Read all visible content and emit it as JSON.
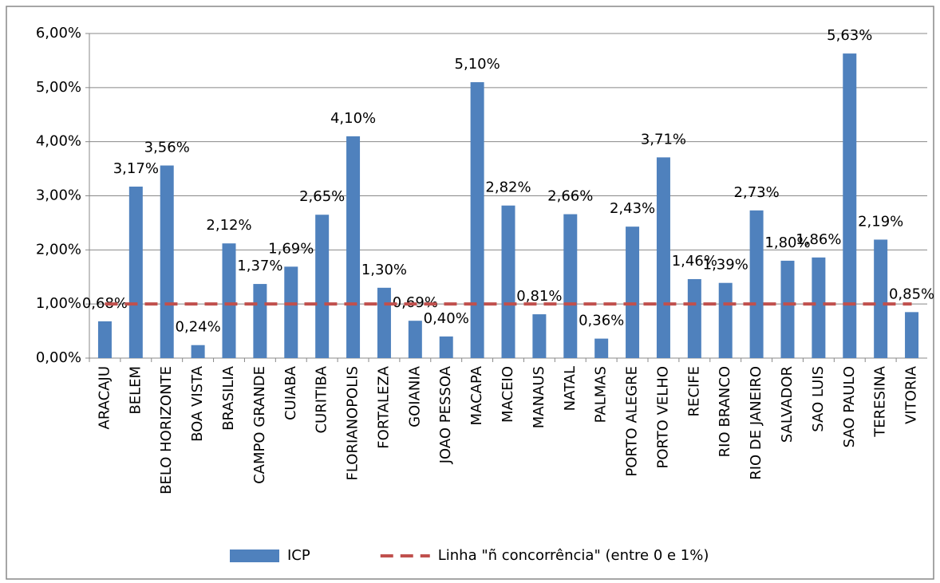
{
  "chart_data": {
    "type": "bar",
    "categories": [
      "ARACAJU",
      "BELEM",
      "BELO HORIZONTE",
      "BOA VISTA",
      "BRASILIA",
      "CAMPO GRANDE",
      "CUIABA",
      "CURITIBA",
      "FLORIANOPOLIS",
      "FORTALEZA",
      "GOIANIA",
      "JOAO PESSOA",
      "MACAPA",
      "MACEIO",
      "MANAUS",
      "NATAL",
      "PALMAS",
      "PORTO ALEGRE",
      "PORTO VELHO",
      "RECIFE",
      "RIO BRANCO",
      "RIO DE JANEIRO",
      "SALVADOR",
      "SAO LUIS",
      "SAO PAULO",
      "TERESINA",
      "VITORIA"
    ],
    "series": [
      {
        "name": "ICP",
        "type": "bar",
        "color": "#4f81bd",
        "values": [
          0.68,
          3.17,
          3.56,
          0.24,
          2.12,
          1.37,
          1.69,
          2.65,
          4.1,
          1.3,
          0.69,
          0.4,
          5.1,
          2.82,
          0.81,
          2.66,
          0.36,
          2.43,
          3.71,
          1.46,
          1.39,
          2.73,
          1.8,
          1.86,
          5.63,
          2.19,
          0.85
        ],
        "value_labels": [
          "0,68%",
          "3,17%",
          "3,56%",
          "0,24%",
          "2,12%",
          "1,37%",
          "1,69%",
          "2,65%",
          "4,10%",
          "1,30%",
          "0,69%",
          "0,40%",
          "5,10%",
          "2,82%",
          "0,81%",
          "2,66%",
          "0,36%",
          "2,43%",
          "3,71%",
          "1,46%",
          "1,39%",
          "2,73%",
          "1,80%",
          "1,86%",
          "5,63%",
          "2,19%",
          "0,85%"
        ]
      },
      {
        "name": "Linha \"ñ concorrência\" (entre 0 e 1%)",
        "type": "line",
        "color": "#c0504d",
        "dashed": true,
        "values": [
          1,
          1,
          1,
          1,
          1,
          1,
          1,
          1,
          1,
          1,
          1,
          1,
          1,
          1,
          1,
          1,
          1,
          1,
          1,
          1,
          1,
          1,
          1,
          1,
          1,
          1,
          1
        ]
      }
    ],
    "ylim": [
      0,
      6
    ],
    "yticks": [
      {
        "value": 0,
        "label": "0,00%"
      },
      {
        "value": 1,
        "label": "1,00%"
      },
      {
        "value": 2,
        "label": "2,00%"
      },
      {
        "value": 3,
        "label": "3,00%"
      },
      {
        "value": 4,
        "label": "4,00%"
      },
      {
        "value": 5,
        "label": "5,00%"
      },
      {
        "value": 6,
        "label": "6,00%"
      }
    ],
    "grid": true,
    "legend": "bottom"
  }
}
